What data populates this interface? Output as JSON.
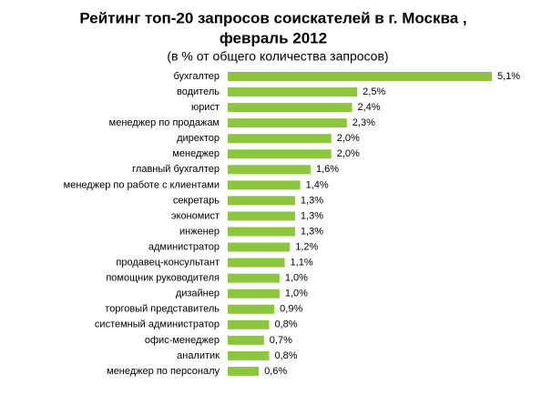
{
  "chart_data": {
    "type": "bar",
    "orientation": "horizontal",
    "title": [
      "Рейтинг топ-20 запросов соискателей в г. Москва ,",
      "февраль 2012"
    ],
    "subtitle": "(в % от общего количества запросов)",
    "color": "#8cc63f",
    "categories": [
      "бухгалтер",
      "водитель",
      "юрист",
      "менеджер по продажам",
      "директор",
      "менеджер",
      "главный бухгалтер",
      "менеджер по работе с клиентами",
      "секретарь",
      "экономист",
      "инженер",
      "администратор",
      "продавец-консультант",
      "помощник руководителя",
      "дизайнер",
      "торговый представитель",
      "системный администратор",
      "офис-менеджер",
      "аналитик",
      "менеджер по персоналу"
    ],
    "values": [
      5.1,
      2.5,
      2.4,
      2.3,
      2.0,
      2.0,
      1.6,
      1.4,
      1.3,
      1.3,
      1.3,
      1.2,
      1.1,
      1.0,
      1.0,
      0.9,
      0.8,
      0.7,
      0.8,
      0.6
    ],
    "value_labels": [
      "5,1%",
      "2,5%",
      "2,4%",
      "2,3%",
      "2,0%",
      "2,0%",
      "1,6%",
      "1,4%",
      "1,3%",
      "1,3%",
      "1,3%",
      "1,2%",
      "1,1%",
      "1,0%",
      "1,0%",
      "0,9%",
      "0,8%",
      "0,7%",
      "0,8%",
      "0,6%"
    ]
  }
}
